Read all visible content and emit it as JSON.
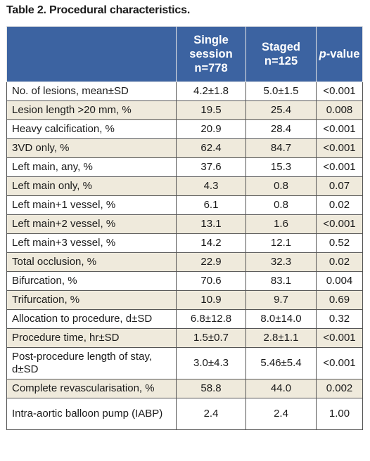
{
  "caption": "Table 2. Procedural characteristics.",
  "headers": {
    "col1": "",
    "col2_line1": "Single",
    "col2_line2": "session",
    "col2_line3": "n=778",
    "col3_line1": "Staged",
    "col3_line2": "n=125",
    "col4_italic": "p",
    "col4_rest": "-value"
  },
  "rows": [
    {
      "label": "No. of lesions, mean±SD",
      "single": "4.2±1.8",
      "staged": "5.0±1.5",
      "p": "<0.001"
    },
    {
      "label": "Lesion length >20 mm, %",
      "single": "19.5",
      "staged": "25.4",
      "p": "0.008"
    },
    {
      "label": "Heavy calcification, %",
      "single": "20.9",
      "staged": "28.4",
      "p": "<0.001"
    },
    {
      "label": "3VD only, %",
      "single": "62.4",
      "staged": "84.7",
      "p": "<0.001"
    },
    {
      "label": "Left main, any, %",
      "single": "37.6",
      "staged": "15.3",
      "p": "<0.001"
    },
    {
      "label": "Left main only, %",
      "single": "4.3",
      "staged": "0.8",
      "p": "0.07"
    },
    {
      "label": "Left main+1 vessel, %",
      "single": "6.1",
      "staged": "0.8",
      "p": "0.02"
    },
    {
      "label": "Left main+2 vessel, %",
      "single": "13.1",
      "staged": "1.6",
      "p": "<0.001"
    },
    {
      "label": "Left main+3 vessel, %",
      "single": "14.2",
      "staged": "12.1",
      "p": "0.52"
    },
    {
      "label": "Total occlusion, %",
      "single": "22.9",
      "staged": "32.3",
      "p": "0.02"
    },
    {
      "label": "Bifurcation, %",
      "single": "70.6",
      "staged": "83.1",
      "p": "0.004"
    },
    {
      "label": "Trifurcation, %",
      "single": "10.9",
      "staged": "9.7",
      "p": "0.69"
    },
    {
      "label": "Allocation to procedure, d±SD",
      "single": "6.8±12.8",
      "staged": "8.0±14.0",
      "p": "0.32"
    },
    {
      "label": "Procedure time, hr±SD",
      "single": "1.5±0.7",
      "staged": "2.8±1.1",
      "p": "<0.001"
    },
    {
      "label": "Post-procedure length of stay, d±SD",
      "single": "3.0±4.3",
      "staged": "5.46±5.4",
      "p": "<0.001"
    },
    {
      "label": "Complete revascularisation, %",
      "single": "58.8",
      "staged": "44.0",
      "p": "0.002"
    },
    {
      "label": "Intra-aortic balloon pump (IABP)",
      "single": "2.4",
      "staged": "2.4",
      "p": "1.00"
    }
  ],
  "colors": {
    "header_bg": "#3c63a1",
    "header_text": "#ffffff",
    "alt_row_bg": "#efeadc",
    "row_bg": "#ffffff"
  }
}
